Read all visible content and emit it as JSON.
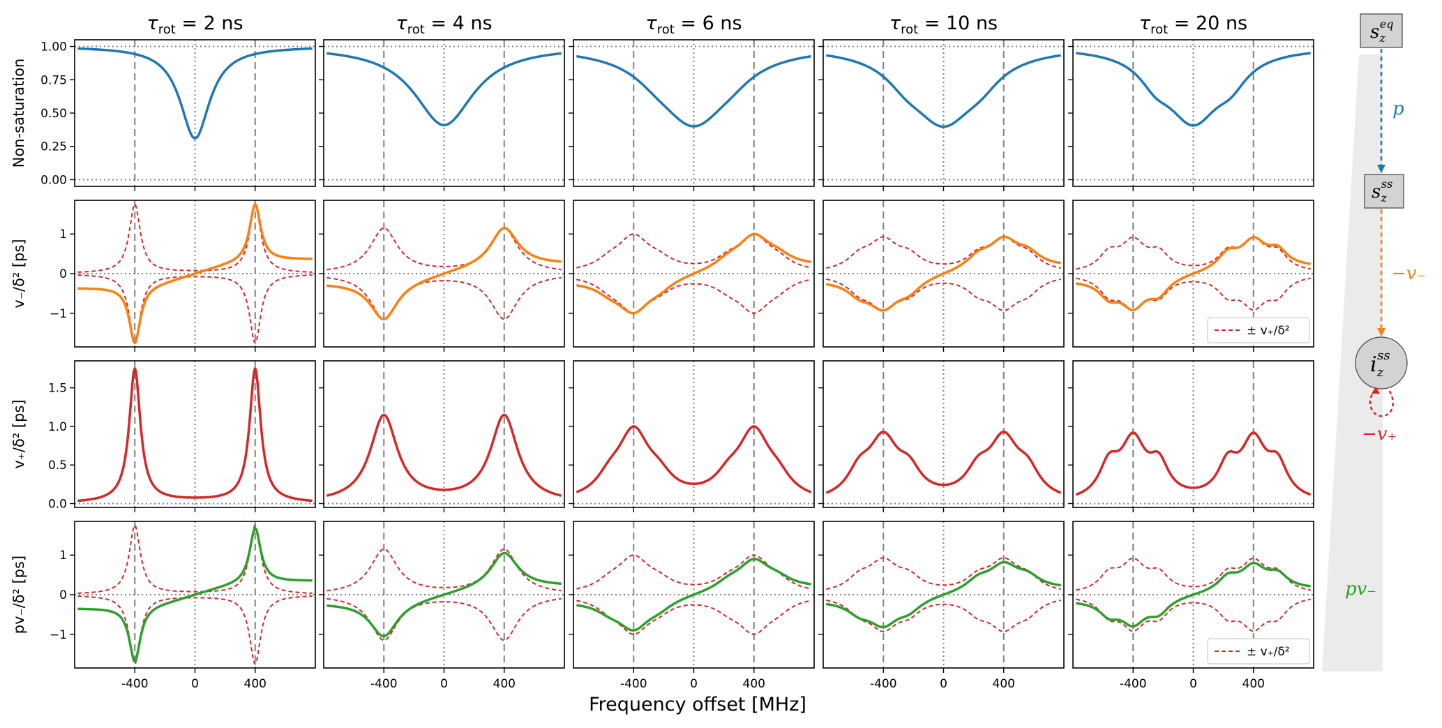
{
  "colors": {
    "nonsat": "#1f77b4",
    "vminus": "#ff7f0e",
    "vplus": "#d62728",
    "pvminus": "#2ca02c",
    "dashed_ref": "#d62728",
    "grid_dashed": "#808080",
    "grid_dotted": "#808080",
    "node_fill": "#d3d3d3"
  },
  "chart_data": {
    "type": "line",
    "xlabel": "Frequency offset  [MHz]",
    "xticks": [
      "-400",
      "0",
      "400"
    ],
    "xlim": [
      -800,
      800
    ],
    "columns": [
      {
        "label": "τ_rot = 2 ns",
        "sym": "τ",
        "sub": "rot",
        "eq": " = 2 ns",
        "width_mhz": 45,
        "sub_w": 0
      },
      {
        "label": "τ_rot = 4 ns",
        "sym": "τ",
        "sub": "rot",
        "eq": " = 4 ns",
        "width_mhz": 110,
        "sub_w": 0
      },
      {
        "label": "τ_rot = 6 ns",
        "sym": "τ",
        "sub": "rot",
        "eq": " = 6 ns",
        "width_mhz": 130,
        "sub_w": 0.22
      },
      {
        "label": "τ_rot = 10 ns",
        "sym": "τ",
        "sub": "rot",
        "eq": " = 10 ns",
        "width_mhz": 120,
        "sub_w": 0.4
      },
      {
        "label": "τ_rot = 20 ns",
        "sym": "τ",
        "sub": "rot",
        "eq": " = 20 ns",
        "width_mhz": 100,
        "sub_w": 0.55
      }
    ],
    "rows": [
      {
        "key": "nonsat",
        "ylabel": "Non-saturation",
        "ylim": [
          -0.05,
          1.05
        ],
        "yticks": [
          0,
          0.25,
          0.5,
          0.75,
          1.0
        ],
        "yticklabels": [
          "0.00",
          "0.25",
          "0.50",
          "0.75",
          "1.00"
        ],
        "hlines": [
          0,
          1
        ],
        "minima": [
          0.31,
          0.41,
          0.44,
          0.46,
          0.47
        ],
        "legend": ""
      },
      {
        "key": "vminus",
        "ylabel": "v₋/δ² [ps]",
        "ylim": [
          -1.85,
          1.85
        ],
        "yticks": [
          -1,
          0,
          1
        ],
        "yticklabels": [
          "−1",
          "0",
          "1"
        ],
        "hlines": [
          0
        ],
        "peaks": [
          1.75,
          1.15,
          1.0,
          0.93,
          0.92
        ],
        "legend": "± v₊/δ²"
      },
      {
        "key": "vplus",
        "ylabel": "v₊/δ² [ps]",
        "ylim": [
          -0.05,
          1.85
        ],
        "yticks": [
          0,
          0.5,
          1.0,
          1.5
        ],
        "yticklabels": [
          "0.0",
          "0.5",
          "1.0",
          "1.5"
        ],
        "hlines": [
          0
        ],
        "peaks": [
          1.75,
          1.15,
          1.0,
          0.93,
          0.92
        ],
        "legend": ""
      },
      {
        "key": "pvminus",
        "ylabel": "pv₋/δ² [ps]",
        "ylim": [
          -1.85,
          1.85
        ],
        "yticks": [
          -1,
          0,
          1
        ],
        "yticklabels": [
          "−1",
          "0",
          "1"
        ],
        "hlines": [
          0
        ],
        "peaks": [
          1.68,
          1.05,
          0.9,
          0.82,
          0.8
        ],
        "legend": "± v₊/δ²"
      }
    ]
  },
  "diagram": {
    "node_seq": {
      "base": "s",
      "sub": "z",
      "sup": "eq"
    },
    "node_sss": {
      "base": "s",
      "sub": "z",
      "sup": "ss"
    },
    "node_iss": {
      "base": "i",
      "sub": "z",
      "sup": "ss"
    },
    "edge_p": "p",
    "edge_vminus": "−v₋",
    "edge_vplus": "−v₊",
    "bottom_label": "pv₋"
  }
}
